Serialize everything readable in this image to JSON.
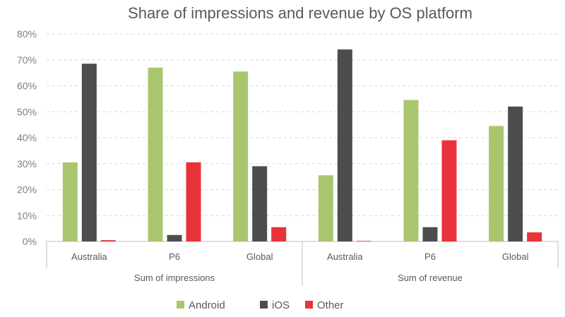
{
  "chart_data": {
    "type": "bar",
    "title": "Share of impressions and revenue by OS platform",
    "xlabel": "",
    "ylabel": "",
    "ylim": [
      0,
      80
    ],
    "yticks": [
      "0%",
      "10%",
      "20%",
      "30%",
      "40%",
      "50%",
      "60%",
      "70%",
      "80%"
    ],
    "grid": true,
    "legend_position": "bottom",
    "groups": [
      {
        "label": "Sum of impressions",
        "categories": [
          "Australia",
          "P6",
          "Global"
        ]
      },
      {
        "label": "Sum of revenue",
        "categories": [
          "Australia",
          "P6",
          "Global"
        ]
      }
    ],
    "categories": [
      "Australia",
      "P6",
      "Global",
      "Australia",
      "P6",
      "Global"
    ],
    "series": [
      {
        "name": "Android",
        "color": "#a9c66f",
        "values": [
          30.5,
          67,
          65.5,
          25.5,
          54.5,
          44.5
        ]
      },
      {
        "name": "iOS",
        "color": "#4d4d4d",
        "values": [
          68.5,
          2.5,
          29,
          74,
          5.5,
          52
        ]
      },
      {
        "name": "Other",
        "color": "#e8333b",
        "values": [
          0.5,
          30.5,
          5.5,
          0.2,
          39,
          3.5
        ]
      }
    ]
  }
}
